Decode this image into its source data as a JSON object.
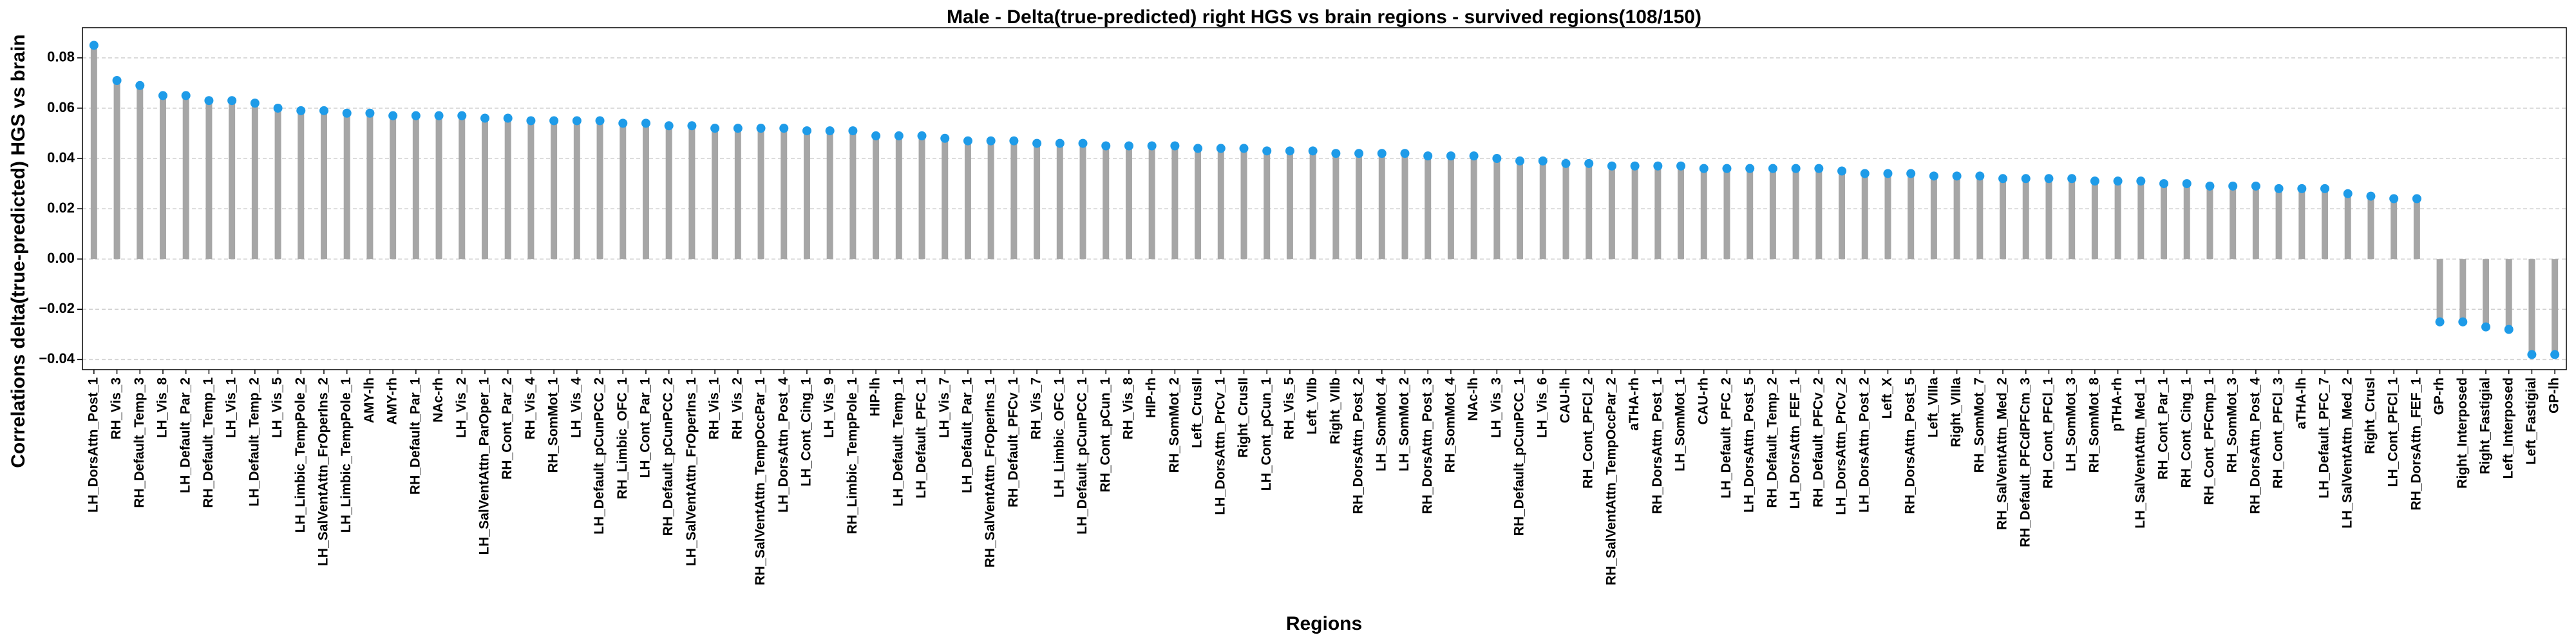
{
  "chart_data": {
    "type": "lollipop",
    "title": "Male - Delta(true-predicted) right HGS vs brain regions - survived regions(108/150)",
    "xlabel": "Regions",
    "ylabel": "Correlations delta(true-predicted) HGS vs brain",
    "categories": [
      "LH_DorsAttn_Post_1",
      "RH_Vis_3",
      "RH_Default_Temp_3",
      "LH_Vis_8",
      "LH_Default_Par_2",
      "RH_Default_Temp_1",
      "LH_Vis_1",
      "LH_Default_Temp_2",
      "LH_Vis_5",
      "LH_Limbic_TempPole_2",
      "LH_SalVentAttn_FrOperIns_2",
      "LH_Limbic_TempPole_1",
      "AMY-lh",
      "AMY-rh",
      "RH_Default_Par_1",
      "NAc-rh",
      "LH_Vis_2",
      "LH_SalVentAttn_ParOper_1",
      "RH_Cont_Par_2",
      "RH_Vis_4",
      "RH_SomMot_1",
      "LH_Vis_4",
      "LH_Default_pCunPCC_2",
      "RH_Limbic_OFC_1",
      "LH_Cont_Par_1",
      "RH_Default_pCunPCC_2",
      "LH_SalVentAttn_FrOperIns_1",
      "RH_Vis_1",
      "RH_Vis_2",
      "RH_SalVentAttn_TempOccPar_1",
      "LH_DorsAttn_Post_4",
      "LH_Cont_Cing_1",
      "LH_Vis_9",
      "RH_Limbic_TempPole_1",
      "HIP-lh",
      "LH_Default_Temp_1",
      "LH_Default_PFC_1",
      "LH_Vis_7",
      "LH_Default_Par_1",
      "RH_SalVentAttn_FrOperIns_1",
      "RH_Default_PFCv_1",
      "RH_Vis_7",
      "LH_Limbic_OFC_1",
      "LH_Default_pCunPCC_1",
      "RH_Cont_pCun_1",
      "RH_Vis_8",
      "HIP-rh",
      "RH_SomMot_2",
      "Left_CrusII",
      "LH_DorsAttn_PrCv_1",
      "Right_CrusII",
      "LH_Cont_pCun_1",
      "RH_Vis_5",
      "Left_VIIb",
      "Right_VIIb",
      "RH_DorsAttn_Post_2",
      "LH_SomMot_4",
      "LH_SomMot_2",
      "RH_DorsAttn_Post_3",
      "RH_SomMot_4",
      "NAc-lh",
      "LH_Vis_3",
      "RH_Default_pCunPCC_1",
      "LH_Vis_6",
      "CAU-lh",
      "RH_Cont_PFCl_2",
      "RH_SalVentAttn_TempOccPar_2",
      "aTHA-rh",
      "RH_DorsAttn_Post_1",
      "LH_SomMot_1",
      "CAU-rh",
      "LH_Default_PFC_2",
      "LH_DorsAttn_Post_5",
      "RH_Default_Temp_2",
      "LH_DorsAttn_FEF_1",
      "RH_Default_PFCv_2",
      "LH_DorsAttn_PrCv_2",
      "LH_DorsAttn_Post_2",
      "Left_X",
      "RH_DorsAttn_Post_5",
      "Left_VIIIa",
      "Right_VIIIa",
      "RH_SomMot_7",
      "RH_SalVentAttn_Med_2",
      "RH_Default_PFCdPFCm_3",
      "RH_Cont_PFCl_1",
      "LH_SomMot_3",
      "RH_SomMot_8",
      "pTHA-rh",
      "LH_SalVentAttn_Med_1",
      "RH_Cont_Par_1",
      "RH_Cont_Cing_1",
      "RH_Cont_PFCmp_1",
      "RH_SomMot_3",
      "RH_DorsAttn_Post_4",
      "RH_Cont_PFCl_3",
      "aTHA-lh",
      "LH_Default_PFC_7",
      "LH_SalVentAttn_Med_2",
      "Right_CrusI",
      "LH_Cont_PFCl_1",
      "RH_DorsAttn_FEF_1",
      "GP-rh",
      "Right_Interposed",
      "Right_Fastigial",
      "Left_Interposed",
      "Left_Fastigial",
      "GP-lh"
    ],
    "values": [
      0.085,
      0.071,
      0.069,
      0.065,
      0.065,
      0.063,
      0.063,
      0.062,
      0.06,
      0.059,
      0.059,
      0.058,
      0.058,
      0.057,
      0.057,
      0.057,
      0.057,
      0.056,
      0.056,
      0.055,
      0.055,
      0.055,
      0.055,
      0.054,
      0.054,
      0.053,
      0.053,
      0.052,
      0.052,
      0.052,
      0.052,
      0.051,
      0.051,
      0.051,
      0.049,
      0.049,
      0.049,
      0.048,
      0.047,
      0.047,
      0.047,
      0.046,
      0.046,
      0.046,
      0.045,
      0.045,
      0.045,
      0.045,
      0.044,
      0.044,
      0.044,
      0.043,
      0.043,
      0.043,
      0.042,
      0.042,
      0.042,
      0.042,
      0.041,
      0.041,
      0.041,
      0.04,
      0.039,
      0.039,
      0.038,
      0.038,
      0.037,
      0.037,
      0.037,
      0.037,
      0.036,
      0.036,
      0.036,
      0.036,
      0.036,
      0.036,
      0.035,
      0.034,
      0.034,
      0.034,
      0.033,
      0.033,
      0.033,
      0.032,
      0.032,
      0.032,
      0.032,
      0.031,
      0.031,
      0.031,
      0.03,
      0.03,
      0.029,
      0.029,
      0.029,
      0.028,
      0.028,
      0.028,
      0.026,
      0.025,
      0.024,
      0.024,
      -0.025,
      -0.025,
      -0.027,
      -0.028,
      -0.038,
      -0.038
    ],
    "stem_color": "#a6a6a6",
    "color": "#1e9be8",
    "ylim": [
      -0.044,
      0.092
    ],
    "yticks": [
      {
        "value": -0.04,
        "label": "−0.04"
      },
      {
        "value": -0.02,
        "label": "−0.02"
      },
      {
        "value": 0,
        "label": "0.00"
      },
      {
        "value": 0.02,
        "label": "0.02"
      },
      {
        "value": 0.04,
        "label": "0.04"
      },
      {
        "value": 0.06,
        "label": "0.06"
      },
      {
        "value": 0.08,
        "label": "0.08"
      }
    ],
    "grid": true
  }
}
